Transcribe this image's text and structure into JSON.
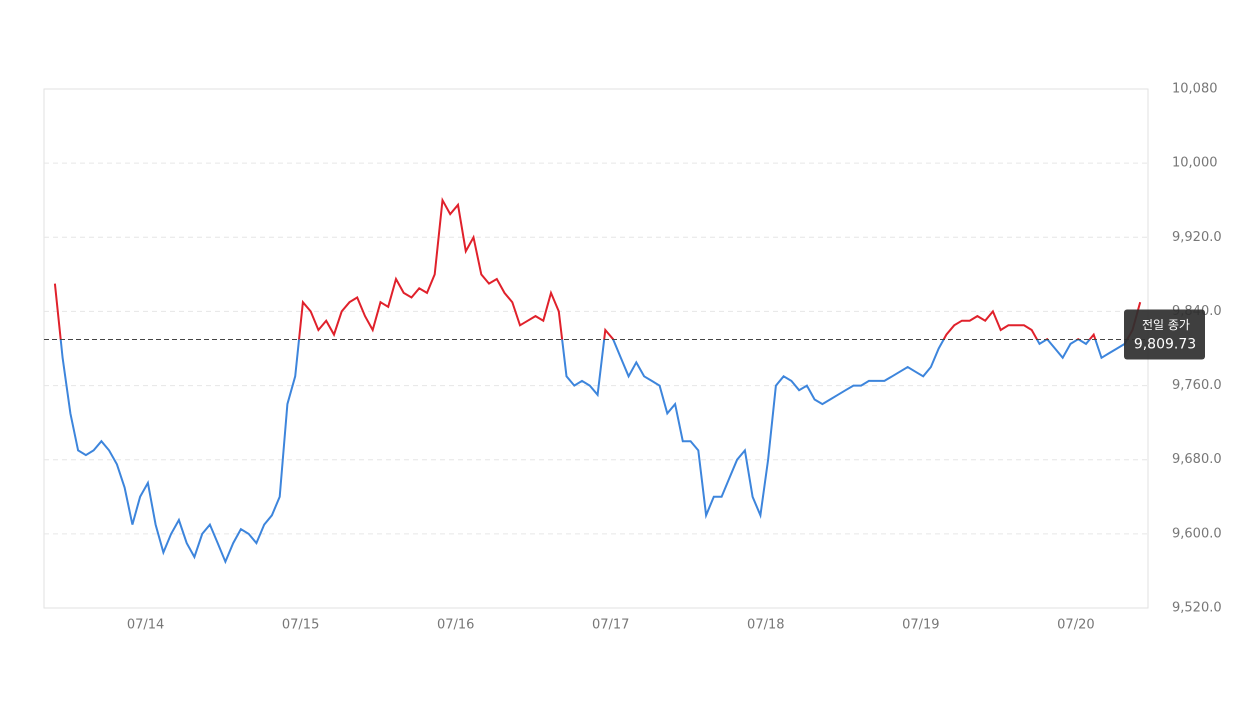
{
  "chart_data": {
    "type": "line",
    "series": [
      {
        "name": "price",
        "color_above": "#e0212b",
        "color_below": "#3d85dc",
        "values": [
          9870,
          9790,
          9730,
          9690,
          9685,
          9690,
          9700,
          9690,
          9675,
          9650,
          9610,
          9640,
          9655,
          9610,
          9580,
          9600,
          9615,
          9590,
          9575,
          9600,
          9610,
          9590,
          9570,
          9590,
          9605,
          9600,
          9590,
          9610,
          9620,
          9640,
          9740,
          9770,
          9850,
          9840,
          9820,
          9830,
          9815,
          9840,
          9850,
          9855,
          9835,
          9820,
          9850,
          9845,
          9875,
          9860,
          9855,
          9865,
          9860,
          9880,
          9960,
          9945,
          9955,
          9905,
          9920,
          9880,
          9870,
          9875,
          9860,
          9850,
          9825,
          9830,
          9835,
          9830,
          9860,
          9840,
          9770,
          9760,
          9765,
          9760,
          9750,
          9820,
          9810,
          9790,
          9770,
          9785,
          9770,
          9765,
          9760,
          9730,
          9740,
          9700,
          9700,
          9690,
          9620,
          9640,
          9640,
          9660,
          9680,
          9690,
          9640,
          9620,
          9680,
          9760,
          9770,
          9765,
          9755,
          9760,
          9745,
          9740,
          9745,
          9750,
          9755,
          9760,
          9760,
          9765,
          9765,
          9765,
          9770,
          9775,
          9780,
          9775,
          9770,
          9780,
          9800,
          9815,
          9825,
          9830,
          9830,
          9835,
          9830,
          9840,
          9820,
          9825,
          9825,
          9825,
          9820,
          9805,
          9810,
          9800,
          9790,
          9805,
          9810,
          9805,
          9815,
          9790,
          9795,
          9800,
          9805,
          9820,
          9850
        ]
      }
    ],
    "reference": {
      "label": "전일 종가",
      "value": 9809.73,
      "value_label": "9,809.73",
      "color": "#444444"
    },
    "xlim": [
      -1.4,
      141
    ],
    "xticks": [
      {
        "value": 11.7,
        "label": "07/14"
      },
      {
        "value": 31.7,
        "label": "07/15"
      },
      {
        "value": 51.7,
        "label": "07/16"
      },
      {
        "value": 71.7,
        "label": "07/17"
      },
      {
        "value": 91.7,
        "label": "07/18"
      },
      {
        "value": 111.7,
        "label": "07/19"
      },
      {
        "value": 131.7,
        "label": "07/20"
      }
    ],
    "ylim": [
      9520,
      10080
    ],
    "yticks": [
      {
        "value": 9520,
        "label": "9,520.0"
      },
      {
        "value": 9600,
        "label": "9,600.0"
      },
      {
        "value": 9680,
        "label": "9,680.0"
      },
      {
        "value": 9760,
        "label": "9,760.0"
      },
      {
        "value": 9840,
        "label": "9,840.0"
      },
      {
        "value": 9920,
        "label": "9,920.0"
      },
      {
        "value": 10000,
        "label": "10,000"
      },
      {
        "value": 10080,
        "label": "10,080"
      }
    ],
    "grid": true
  }
}
